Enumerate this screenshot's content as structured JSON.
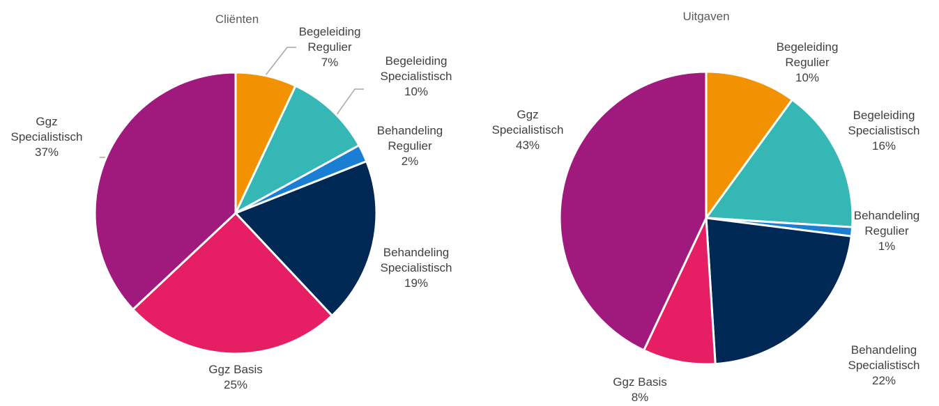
{
  "chart_data": [
    {
      "type": "pie",
      "title": "Cliënten",
      "categories": [
        "Begeleiding Regulier",
        "Begeleiding Specialistisch",
        "Behandeling Regulier",
        "Behandeling Specialistisch",
        "Ggz Basis",
        "Ggz Specialistisch"
      ],
      "values": [
        7,
        10,
        2,
        19,
        25,
        37
      ],
      "value_labels": [
        "7%",
        "10%",
        "2%",
        "19%",
        "25%",
        "37%"
      ],
      "colors": [
        "#f39200",
        "#35b8b5",
        "#1a7fd4",
        "#002855",
        "#e61e64",
        "#a0197d"
      ]
    },
    {
      "type": "pie",
      "title": "Uitgaven",
      "categories": [
        "Begeleiding Regulier",
        "Begeleiding Specialistisch",
        "Behandeling Regulier",
        "Behandeling Specialistisch",
        "Ggz Basis",
        "Ggz Specialistisch"
      ],
      "values": [
        10,
        16,
        1,
        22,
        8,
        43
      ],
      "value_labels": [
        "10%",
        "16%",
        "1%",
        "22%",
        "8%",
        "43%"
      ],
      "colors": [
        "#f39200",
        "#35b8b5",
        "#1a7fd4",
        "#002855",
        "#e61e64",
        "#a0197d"
      ]
    }
  ]
}
